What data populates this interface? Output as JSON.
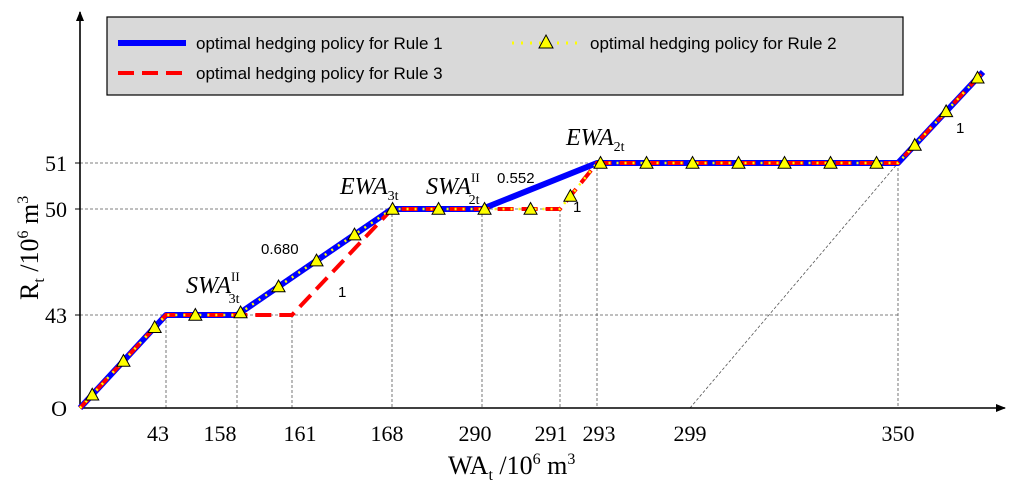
{
  "chart_data": {
    "type": "line",
    "origin_label": "O",
    "xlabel": {
      "main": "WA",
      "sub": "t",
      "rest": " /10",
      "sup": "6",
      "unit": " m",
      "unit_sup": "3"
    },
    "ylabel": {
      "main": "R",
      "sub": "t",
      "rest": " /10",
      "sup": "6",
      "unit": " m",
      "unit_sup": "3"
    },
    "x_ticks": [
      "43",
      "158",
      "161",
      "168",
      "290",
      "291",
      "293",
      "299",
      "350"
    ],
    "y_ticks": [
      "43",
      "50",
      "51"
    ],
    "x_positions": [
      0,
      43,
      158,
      161,
      168,
      290,
      291,
      293,
      299,
      350,
      390
    ],
    "y_max": 60,
    "x_max": 400,
    "legend": [
      {
        "label": "optimal hedging policy for Rule 1",
        "color": "#0000ff",
        "style": "solid"
      },
      {
        "label": "optimal hedging policy for Rule 2",
        "color": "#ffff00",
        "style": "dotted-triangle"
      },
      {
        "label": "optimal hedging policy for Rule 3",
        "color": "#ff0000",
        "style": "dashed"
      }
    ],
    "series": [
      {
        "name": "Rule 1",
        "points": [
          [
            0,
            0
          ],
          [
            43,
            43
          ],
          [
            158,
            43
          ],
          [
            168,
            50
          ],
          [
            290,
            50
          ],
          [
            293,
            51
          ],
          [
            350,
            51
          ],
          [
            390,
            91
          ]
        ]
      },
      {
        "name": "Rule 2",
        "points": [
          [
            0,
            0
          ],
          [
            43,
            43
          ],
          [
            158,
            43
          ],
          [
            168,
            50
          ],
          [
            291,
            50
          ],
          [
            293,
            51
          ],
          [
            350,
            51
          ],
          [
            390,
            91
          ]
        ]
      },
      {
        "name": "Rule 3",
        "points": [
          [
            0,
            0
          ],
          [
            43,
            43
          ],
          [
            161,
            43
          ],
          [
            168,
            50
          ],
          [
            291,
            50
          ],
          [
            293,
            51
          ],
          [
            350,
            51
          ],
          [
            390,
            91
          ]
        ]
      }
    ],
    "annotations": [
      {
        "id": "swa3",
        "main": "SWA",
        "sup": "II",
        "sub": "3t"
      },
      {
        "id": "ewa3",
        "main": "EWA",
        "sub": "3t"
      },
      {
        "id": "swa2",
        "main": "SWA",
        "sup": "II",
        "sub": "2t"
      },
      {
        "id": "ewa2",
        "main": "EWA",
        "sub": "2t"
      }
    ],
    "slope_labels": [
      "0.680",
      "1",
      "0.552",
      "1",
      "1"
    ]
  },
  "colors": {
    "rule1": "#0000ff",
    "rule2": "#ffff00",
    "rule3": "#ff0000",
    "legend_bg": "#d9d9d9"
  }
}
